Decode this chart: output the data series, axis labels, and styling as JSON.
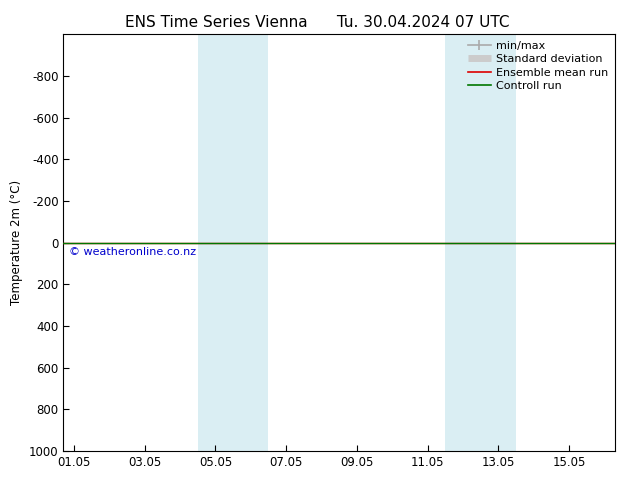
{
  "title_left": "ENS Time Series Vienna",
  "title_right": "Tu. 30.04.2024 07 UTC",
  "ylabel": "Temperature 2m (°C)",
  "ylim_top": -1000,
  "ylim_bottom": 1000,
  "yticks": [
    -800,
    -600,
    -400,
    -200,
    0,
    200,
    400,
    600,
    800,
    1000
  ],
  "xtick_labels": [
    "01.05",
    "03.05",
    "05.05",
    "07.05",
    "09.05",
    "11.05",
    "13.05",
    "15.05"
  ],
  "xtick_positions": [
    0,
    2,
    4,
    6,
    8,
    10,
    12,
    14
  ],
  "xlim": [
    -0.3,
    15.3
  ],
  "shading_bands": [
    {
      "x_start": 3.5,
      "x_end": 5.5
    },
    {
      "x_start": 10.5,
      "x_end": 12.5
    }
  ],
  "shading_color": "#daeef3",
  "green_line_color": "#007700",
  "red_line_color": "#dd0000",
  "watermark": "© weatheronline.co.nz",
  "watermark_color": "#0000cc",
  "legend_entries": [
    "min/max",
    "Standard deviation",
    "Ensemble mean run",
    "Controll run"
  ],
  "legend_line_colors": [
    "#aaaaaa",
    "#cccccc",
    "#dd0000",
    "#007700"
  ],
  "background_color": "#ffffff",
  "plot_bg_color": "#ffffff",
  "border_color": "#000000",
  "title_fontsize": 11,
  "axis_fontsize": 8.5,
  "legend_fontsize": 8
}
